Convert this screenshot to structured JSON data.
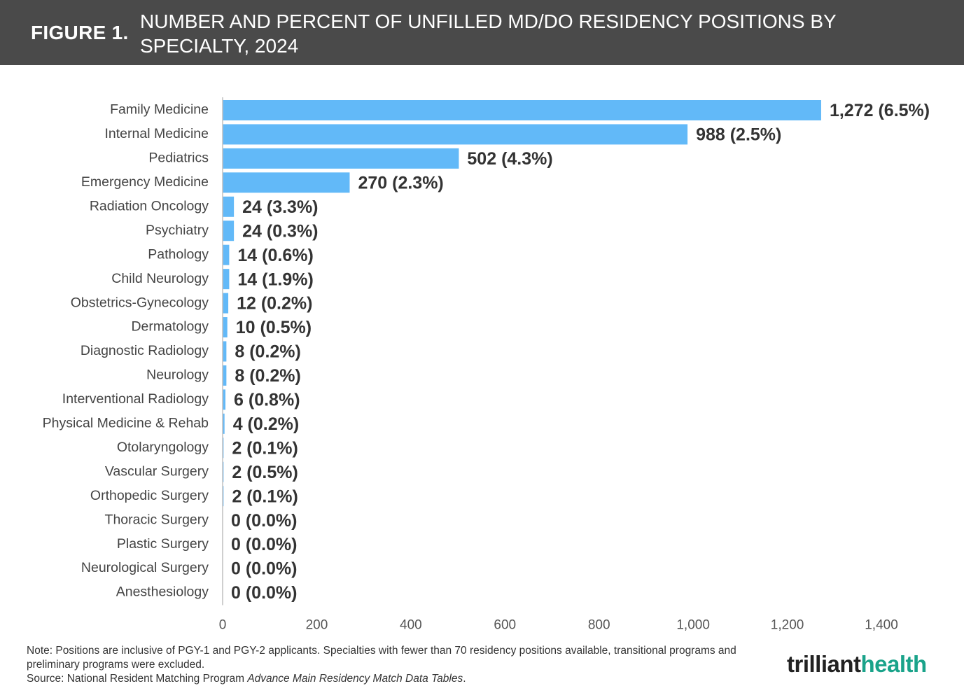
{
  "header": {
    "figure_label": "FIGURE 1.",
    "title": "NUMBER AND PERCENT OF UNFILLED MD/DO RESIDENCY POSITIONS BY SPECIALTY, 2024"
  },
  "chart_data": {
    "type": "bar",
    "orientation": "horizontal",
    "title": "",
    "xlabel": "",
    "ylabel": "",
    "xlim": [
      0,
      1400
    ],
    "x_ticks": [
      0,
      200,
      400,
      600,
      800,
      1000,
      1200,
      1400
    ],
    "x_tick_labels": [
      "0",
      "200",
      "400",
      "600",
      "800",
      "1,000",
      "1,200",
      "1,400"
    ],
    "grid": false,
    "bar_color": "#62b9f8",
    "categories": [
      "Family Medicine",
      "Internal Medicine",
      "Pediatrics",
      "Emergency Medicine",
      "Radiation Oncology",
      "Psychiatry",
      "Pathology",
      "Child Neurology",
      "Obstetrics-Gynecology",
      "Dermatology",
      "Diagnostic Radiology",
      "Neurology",
      "Interventional Radiology",
      "Physical Medicine & Rehab",
      "Otolaryngology",
      "Vascular Surgery",
      "Orthopedic Surgery",
      "Thoracic Surgery",
      "Plastic Surgery",
      "Neurological Surgery",
      "Anesthesiology"
    ],
    "values": [
      1272,
      988,
      502,
      270,
      24,
      24,
      14,
      14,
      12,
      10,
      8,
      8,
      6,
      4,
      2,
      2,
      2,
      0,
      0,
      0,
      0
    ],
    "data_labels": [
      "1,272 (6.5%)",
      "988 (2.5%)",
      "502 (4.3%)",
      "270 (2.3%)",
      "24 (3.3%)",
      "24 (0.3%)",
      "14 (0.6%)",
      "14 (1.9%)",
      "12 (0.2%)",
      "10 (0.5%)",
      "8 (0.2%)",
      "8 (0.2%)",
      "6 (0.8%)",
      "4 (0.2%)",
      "2 (0.1%)",
      "2 (0.5%)",
      "2 (0.1%)",
      "0 (0.0%)",
      "0 (0.0%)",
      "0 (0.0%)",
      "0 (0.0%)"
    ]
  },
  "footer": {
    "note": "Note: Positions are inclusive of PGY-1 and PGY-2 applicants. Specialties with fewer than 70 residency positions available, transitional programs and preliminary programs were excluded.",
    "source_prefix": "Source: National Resident Matching Program ",
    "source_title": "Advance Main Residency Match Data Tables",
    "source_suffix": "."
  },
  "logo": {
    "part1": "trilliant",
    "part2": "health"
  }
}
